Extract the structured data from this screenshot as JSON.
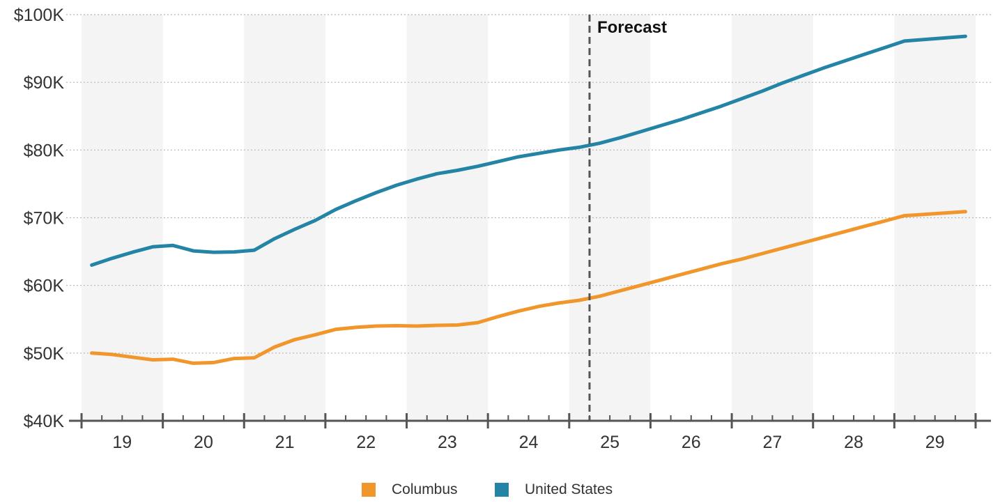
{
  "chart_data": {
    "type": "line",
    "x_unit": "year",
    "x_ticks": [
      "19",
      "20",
      "21",
      "22",
      "23",
      "24",
      "25",
      "26",
      "27",
      "28",
      "29"
    ],
    "y_ticks": [
      "$40K",
      "$50K",
      "$60K",
      "$70K",
      "$80K",
      "$90K",
      "$100K"
    ],
    "ylim": [
      40000,
      100000
    ],
    "xlim": [
      2018.5,
      2029.5
    ],
    "grid": "horizontal dotted",
    "band_shading": "alternating years",
    "forecast": {
      "label": "Forecast",
      "start": 2024.75
    },
    "legend_position": "bottom-center",
    "series": [
      {
        "name": "Columbus",
        "color": "#f0962a",
        "points": [
          [
            2018.625,
            50000
          ],
          [
            2018.875,
            49800
          ],
          [
            2019.125,
            49400
          ],
          [
            2019.375,
            49000
          ],
          [
            2019.625,
            49100
          ],
          [
            2019.875,
            48500
          ],
          [
            2020.125,
            48600
          ],
          [
            2020.375,
            49200
          ],
          [
            2020.625,
            49300
          ],
          [
            2020.875,
            50900
          ],
          [
            2021.125,
            52000
          ],
          [
            2021.375,
            52700
          ],
          [
            2021.625,
            53500
          ],
          [
            2021.875,
            53800
          ],
          [
            2022.125,
            54000
          ],
          [
            2022.375,
            54050
          ],
          [
            2022.625,
            54000
          ],
          [
            2022.875,
            54100
          ],
          [
            2023.125,
            54150
          ],
          [
            2023.375,
            54500
          ],
          [
            2023.625,
            55400
          ],
          [
            2023.875,
            56200
          ],
          [
            2024.125,
            56900
          ],
          [
            2024.375,
            57400
          ],
          [
            2024.625,
            57800
          ],
          [
            2024.875,
            58400
          ],
          [
            2025.125,
            59200
          ],
          [
            2025.375,
            60000
          ],
          [
            2025.625,
            60800
          ],
          [
            2025.875,
            61600
          ],
          [
            2026.125,
            62400
          ],
          [
            2026.375,
            63200
          ],
          [
            2026.625,
            63900
          ],
          [
            2026.875,
            64700
          ],
          [
            2027.125,
            65500
          ],
          [
            2027.375,
            66300
          ],
          [
            2027.625,
            67100
          ],
          [
            2027.875,
            67900
          ],
          [
            2028.125,
            68700
          ],
          [
            2028.375,
            69500
          ],
          [
            2028.625,
            70300
          ],
          [
            2029.375,
            70900
          ]
        ]
      },
      {
        "name": "United States",
        "color": "#2484a6",
        "points": [
          [
            2018.625,
            63000
          ],
          [
            2018.875,
            64000
          ],
          [
            2019.125,
            64900
          ],
          [
            2019.375,
            65700
          ],
          [
            2019.625,
            65900
          ],
          [
            2019.875,
            65100
          ],
          [
            2020.125,
            64900
          ],
          [
            2020.375,
            64950
          ],
          [
            2020.625,
            65200
          ],
          [
            2020.875,
            66900
          ],
          [
            2021.125,
            68300
          ],
          [
            2021.375,
            69600
          ],
          [
            2021.625,
            71200
          ],
          [
            2021.875,
            72500
          ],
          [
            2022.125,
            73700
          ],
          [
            2022.375,
            74800
          ],
          [
            2022.625,
            75700
          ],
          [
            2022.875,
            76500
          ],
          [
            2023.125,
            77000
          ],
          [
            2023.375,
            77600
          ],
          [
            2023.625,
            78300
          ],
          [
            2023.875,
            79000
          ],
          [
            2024.125,
            79500
          ],
          [
            2024.375,
            80000
          ],
          [
            2024.625,
            80400
          ],
          [
            2024.875,
            81000
          ],
          [
            2025.125,
            81800
          ],
          [
            2025.375,
            82700
          ],
          [
            2025.625,
            83600
          ],
          [
            2025.875,
            84500
          ],
          [
            2026.125,
            85500
          ],
          [
            2026.375,
            86500
          ],
          [
            2026.625,
            87600
          ],
          [
            2026.875,
            88700
          ],
          [
            2027.125,
            89900
          ],
          [
            2027.375,
            91000
          ],
          [
            2027.625,
            92100
          ],
          [
            2027.875,
            93100
          ],
          [
            2028.125,
            94100
          ],
          [
            2028.375,
            95100
          ],
          [
            2028.625,
            96100
          ],
          [
            2029.375,
            96800
          ]
        ]
      }
    ]
  }
}
